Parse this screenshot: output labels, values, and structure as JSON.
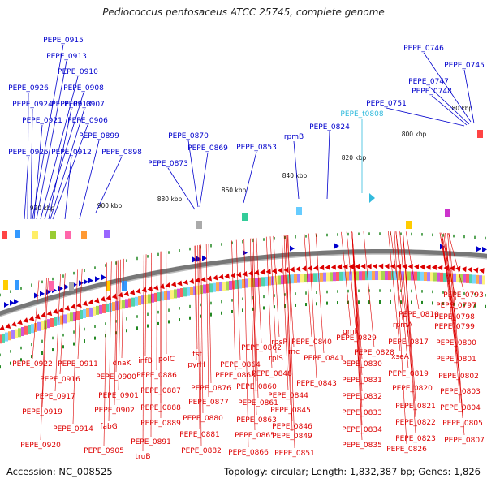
{
  "title": "Pediococcus pentosaceus ATCC 25745, complete genome",
  "footer": {
    "accession": "Accession: NC_008525",
    "summary": "Topology: circular; Length: 1,832,387 bp; Genes: 1,826"
  },
  "colors": {
    "forward": "#0000cc",
    "reverse": "#dd0000",
    "rna": "#33bbdd",
    "backbone": "#888888",
    "tick": "#228822"
  },
  "kbp_labels": [
    "780 kbp",
    "800 kbp",
    "820 kbp",
    "840 kbp",
    "860 kbp",
    "880 kbp",
    "900 kbp",
    "920 kbp"
  ],
  "top_labels": [
    "PEPE_0915",
    "PEPE_0913",
    "PEPE_0910",
    "PEPE_0926",
    "PEPE_0908",
    "PEPE_0924",
    "PEPE_0918",
    "PEPE_0907",
    "PEPE_0921",
    "PEPE_0906",
    "PEPE_0899",
    "PEPE_0925",
    "PEPE_0912",
    "PEPE_0898",
    "PEPE_0870",
    "PEPE_0869",
    "PEPE_0873",
    "PEPE_0853",
    "rpmB",
    "PEPE_0824",
    "PEPE_t0808",
    "PEPE_0746",
    "PEPE_0745",
    "PEPE_0747",
    "PEPE_0748",
    "PEPE_0751"
  ],
  "bottom_labels": [
    "PEPE_0922",
    "PEPE_0911",
    "dnaK",
    "infB",
    "polC",
    "tsf",
    "PEPE_0862",
    "rpsP",
    "PEPE_0840",
    "gmk",
    "PEPE_0829",
    "PEPE_0810",
    "PEPE_0793",
    "PEPE_0916",
    "PEPE_0900",
    "PEPE_0886",
    "pyrH",
    "PEPE_0864",
    "rplS",
    "PEPE_0841",
    "rnc",
    "PEPE_0828",
    "PEPE_0830",
    "PEPE_0817",
    "PEPE_0797",
    "PEPE_0798",
    "PEPE_0799",
    "PEPE_0800",
    "PEPE_0801",
    "PEPE_0917",
    "PEPE_0901",
    "PEPE_0887",
    "PEPE_0876",
    "PEPE_0868",
    "PEPE_0848",
    "PEPE_0843",
    "PEPE_0831",
    "xseA",
    "PEPE_0819",
    "PEPE_0802",
    "PEPE_0919",
    "PEPE_0902",
    "PEPE_0888",
    "PEPE_0877",
    "PEPE_0860",
    "PEPE_0844",
    "PEPE_0832",
    "PEPE_0820",
    "PEPE_0803",
    "PEPE_0914",
    "fabG",
    "PEPE_0889",
    "PEPE_0880",
    "PEPE_0861",
    "PEPE_0845",
    "PEPE_0833",
    "PEPE_0821",
    "PEPE_0804",
    "PEPE_0863",
    "PEPE_0846",
    "PEPE_0834",
    "PEPE_0822",
    "PEPE_0805",
    "PEPE_0920",
    "PEPE_0905",
    "PEPE_0891",
    "PEPE_0881",
    "PEPE_0865",
    "PEPE_0849",
    "PEPE_0835",
    "PEPE_0823",
    "PEPE_0807",
    "truB",
    "PEPE_0882",
    "PEPE_0866",
    "PEPE_0851",
    "PEPE_0826",
    "rpmA"
  ]
}
